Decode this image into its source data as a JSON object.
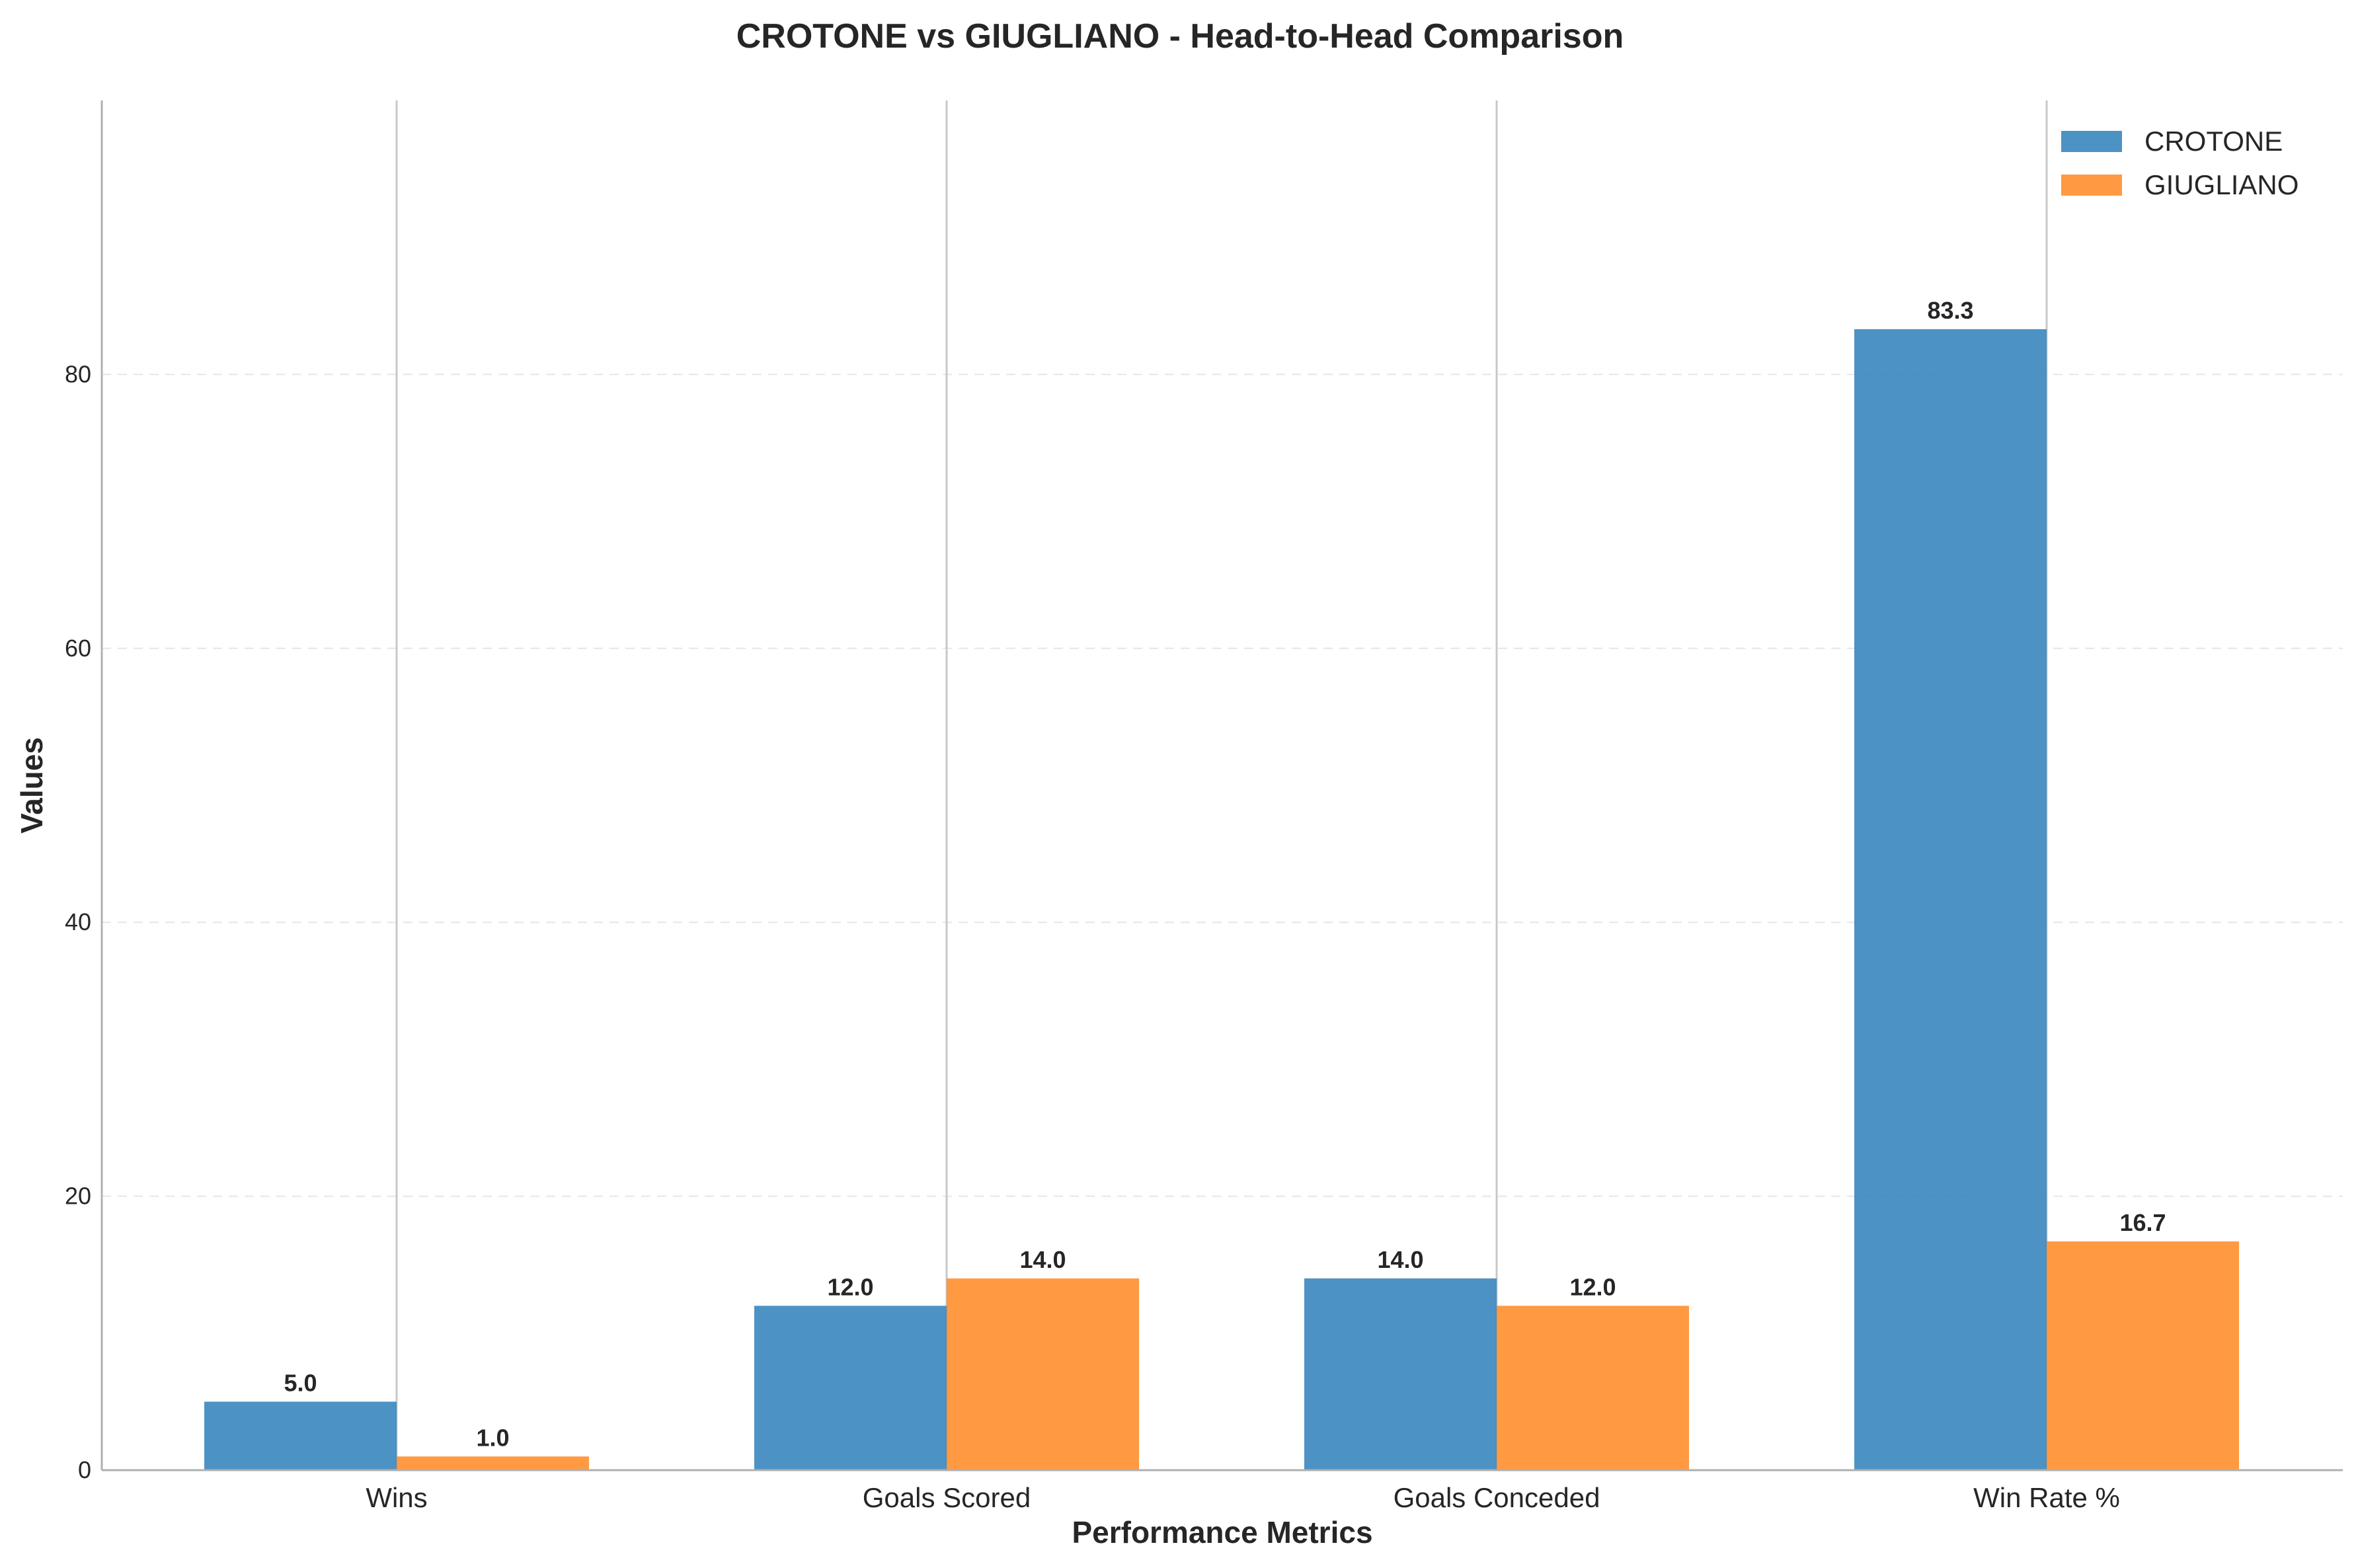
{
  "chart_data": {
    "type": "bar",
    "title": "CROTONE vs GIUGLIANO - Head-to-Head Comparison",
    "xlabel": "Performance Metrics",
    "ylabel": "Values",
    "categories": [
      "Wins",
      "Goals Scored",
      "Goals Conceded",
      "Win Rate %"
    ],
    "series": [
      {
        "name": "CROTONE",
        "color": "#3a86be",
        "values": [
          5.0,
          12.0,
          14.0,
          83.3
        ]
      },
      {
        "name": "GIUGLIANO",
        "color": "#ff8f2f",
        "values": [
          1.0,
          14.0,
          12.0,
          16.7
        ]
      }
    ],
    "ylim": [
      0,
      100
    ],
    "yticks": [
      0,
      20,
      40,
      60,
      80
    ],
    "data_labels": true,
    "value_format_decimals": 1,
    "grid": {
      "horizontal": true,
      "style": "dashed",
      "vertical_at_categories": true
    },
    "legend_position": "top-right"
  }
}
